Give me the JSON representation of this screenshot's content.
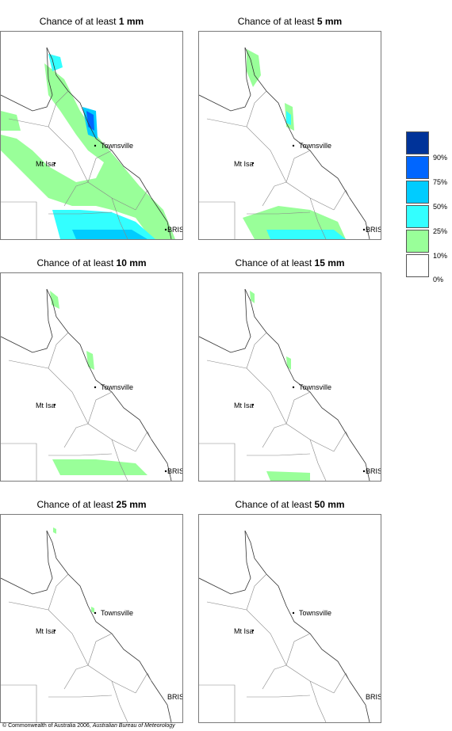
{
  "panels": [
    {
      "title_prefix": "Chance of at least ",
      "threshold": "1 mm"
    },
    {
      "title_prefix": "Chance of at least ",
      "threshold": "5 mm"
    },
    {
      "title_prefix": "Chance of at least ",
      "threshold": "10 mm"
    },
    {
      "title_prefix": "Chance of at least ",
      "threshold": "15 mm"
    },
    {
      "title_prefix": "Chance of at least ",
      "threshold": "25 mm"
    },
    {
      "title_prefix": "Chance of at least ",
      "threshold": "50 mm"
    }
  ],
  "places": {
    "townsville": "Townsville",
    "mt_isa": "Mt Isa",
    "brisbane": "BRIS"
  },
  "legend": {
    "labels": [
      "90%",
      "75%",
      "50%",
      "25%",
      "10%",
      "0%"
    ],
    "colors": [
      "#003399",
      "#0066ff",
      "#00ccff",
      "#33ffff",
      "#99ff99",
      "#ffffff"
    ]
  },
  "footer": {
    "copyright": "© Commonwealth of Australia 2006, ",
    "agency": "Australian Bureau of Meteorology"
  }
}
